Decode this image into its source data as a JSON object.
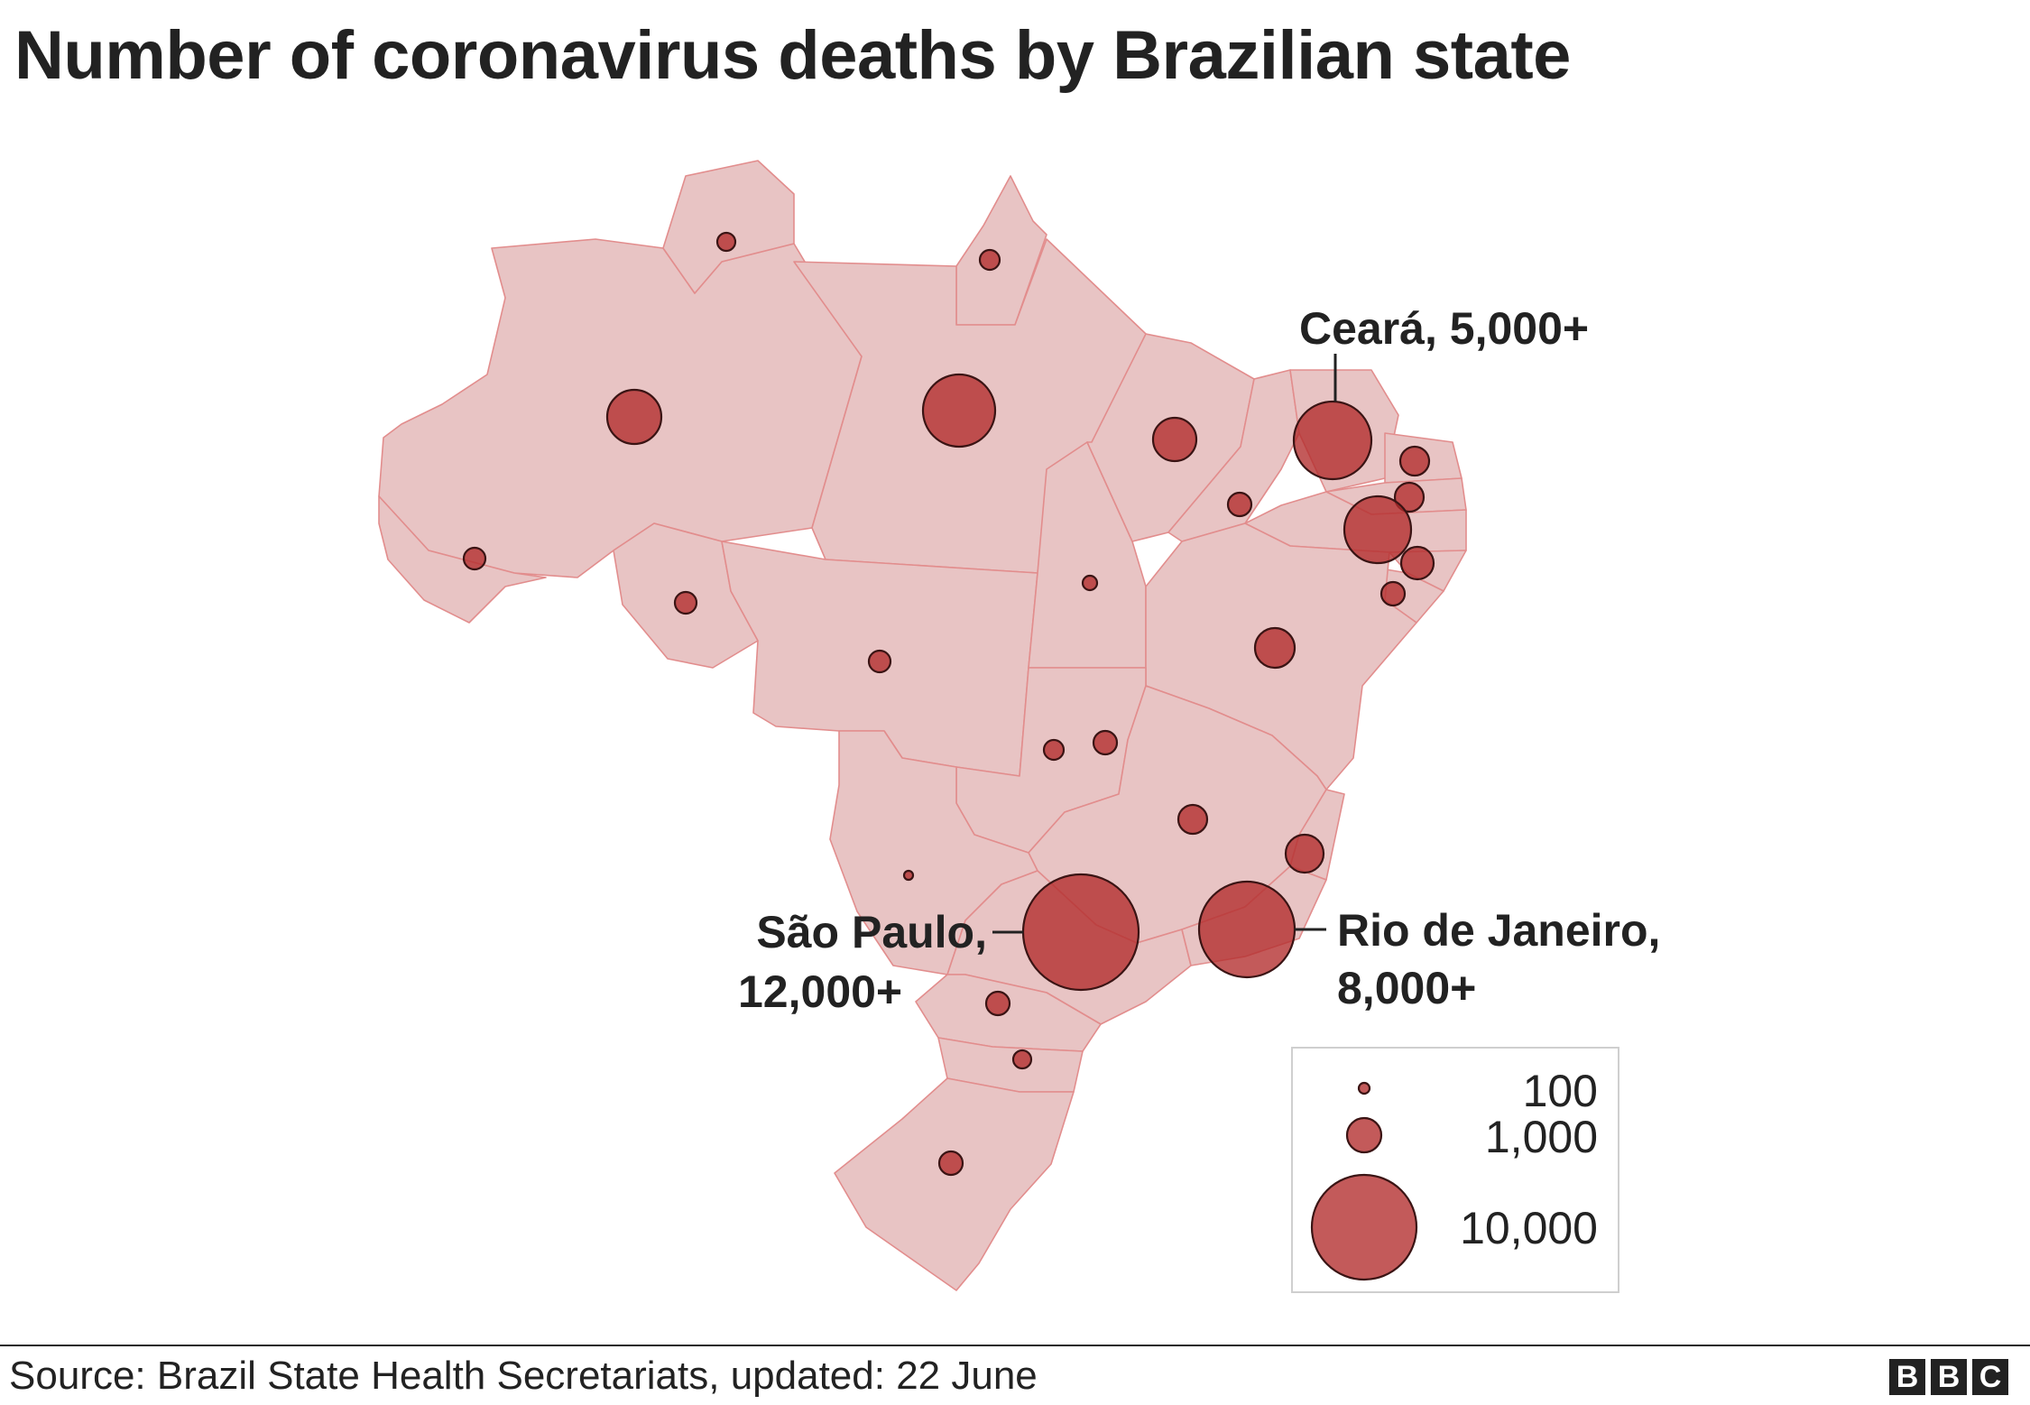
{
  "title": "Number of coronavirus deaths by Brazilian state",
  "labels": {
    "ceara": "Ceará, 5,000+",
    "sao_paulo_line1": "São Paulo,",
    "sao_paulo_line2": "12,000+",
    "rio_line1": "Rio de Janeiro,",
    "rio_line2": "8,000+"
  },
  "legend": {
    "small": "100",
    "medium": "1,000",
    "large": "10,000"
  },
  "source": "Source: Brazil State Health Secretariats, updated: 22 June",
  "logo": {
    "letters": [
      "B",
      "B",
      "C"
    ]
  },
  "colors": {
    "state_fill": "#e8c4c4",
    "state_border": "#e28d8d",
    "bubble": "#b22c2c",
    "text": "#222222"
  }
}
